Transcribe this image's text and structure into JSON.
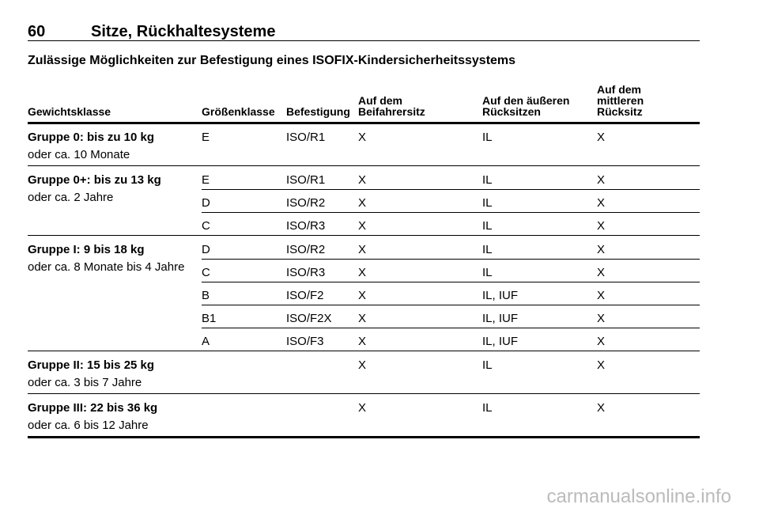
{
  "header": {
    "page_number": "60",
    "section": "Sitze, Rückhaltesysteme"
  },
  "subtitle": "Zulässige Möglichkeiten zur Befestigung eines ISOFIX-Kindersicherheitssystems",
  "table": {
    "columns": [
      "Gewichtsklasse",
      "Größenklasse",
      "Befestigung",
      "Auf dem\nBeifahrersitz",
      "Auf den äußeren\nRücksitzen",
      "Auf dem\nmittleren\nRücksitz"
    ],
    "groups": [
      {
        "label": "Gruppe 0: bis zu 10 kg",
        "note": "oder ca. 10 Monate",
        "rows": [
          {
            "size_class": "E",
            "fixture": "ISO/R1",
            "front": "X",
            "outer": "IL",
            "middle": "X"
          }
        ]
      },
      {
        "label": "Gruppe 0+: bis zu 13 kg",
        "note": "oder ca. 2 Jahre",
        "rows": [
          {
            "size_class": "E",
            "fixture": "ISO/R1",
            "front": "X",
            "outer": "IL",
            "middle": "X"
          },
          {
            "size_class": "D",
            "fixture": "ISO/R2",
            "front": "X",
            "outer": "IL",
            "middle": "X"
          },
          {
            "size_class": "C",
            "fixture": "ISO/R3",
            "front": "X",
            "outer": "IL",
            "middle": "X"
          }
        ]
      },
      {
        "label": "Gruppe I: 9 bis 18 kg",
        "note": "oder ca. 8 Monate bis 4 Jahre",
        "rows": [
          {
            "size_class": "D",
            "fixture": "ISO/R2",
            "front": "X",
            "outer": "IL",
            "middle": "X"
          },
          {
            "size_class": "C",
            "fixture": "ISO/R3",
            "front": "X",
            "outer": "IL",
            "middle": "X"
          },
          {
            "size_class": "B",
            "fixture": "ISO/F2",
            "front": "X",
            "outer": "IL, IUF",
            "middle": "X"
          },
          {
            "size_class": "B1",
            "fixture": "ISO/F2X",
            "front": "X",
            "outer": "IL, IUF",
            "middle": "X"
          },
          {
            "size_class": "A",
            "fixture": "ISO/F3",
            "front": "X",
            "outer": "IL, IUF",
            "middle": "X"
          }
        ]
      },
      {
        "label": "Gruppe II: 15 bis 25 kg",
        "note": "oder ca. 3 bis 7 Jahre",
        "rows": [
          {
            "front": "X",
            "outer": "IL",
            "middle": "X"
          }
        ]
      },
      {
        "label": "Gruppe III: 22 bis 36 kg",
        "note": "oder ca. 6 bis 12 Jahre",
        "rows": [
          {
            "front": "X",
            "outer": "IL",
            "middle": "X"
          }
        ]
      }
    ]
  },
  "watermark": "carmanualsonline.info"
}
